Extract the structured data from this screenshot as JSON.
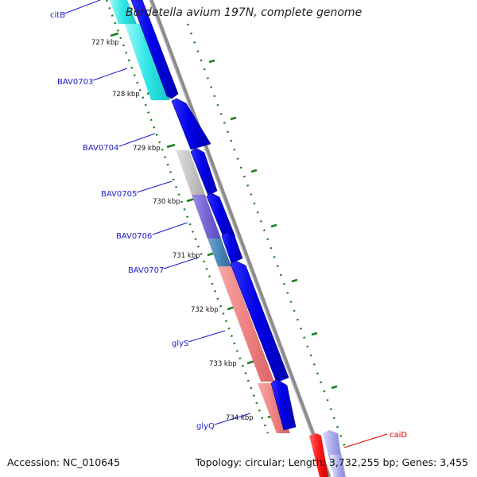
{
  "title": "Bordetella avium 197N, complete genome",
  "footer": {
    "accession": "Accession: NC_010645",
    "summary": "Topology: circular; Length: 3,732,255 bp; Genes: 3,455"
  },
  "kbp_ticks": [
    "727 kbp",
    "728 kbp",
    "729 kbp",
    "730 kbp",
    "731 kbp",
    "732 kbp",
    "733 kbp",
    "734 kbp"
  ],
  "gene_labels": [
    "citB",
    "BAV0703",
    "BAV0704",
    "BAV0705",
    "BAV0706",
    "BAV0707",
    "glyS",
    "glyQ",
    "caiD"
  ],
  "colors": {
    "cds_forward": "#0000e0",
    "backbone": "#8c8c8c",
    "tick_green": "#1a7f1a",
    "label_blue": "#1a1acc",
    "label_red": "#dd0000",
    "feature_cyan": "#33e5e5",
    "feature_gray": "#c4c4c4",
    "feature_purple": "#7b68d8",
    "feature_steel": "#4a86b8",
    "feature_salmon": "#ee8080",
    "feature_red": "#ff1a1a",
    "feature_lavender": "#9e9ee8"
  }
}
